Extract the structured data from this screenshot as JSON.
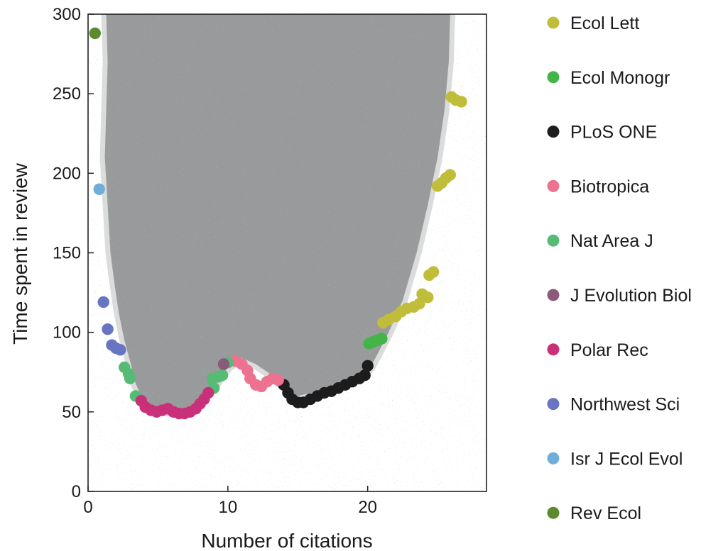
{
  "chart_data": {
    "type": "scatter",
    "title": "",
    "xlabel": "Number of citations",
    "ylabel": "Time spent in review",
    "xlim": [
      0,
      28.5
    ],
    "ylim": [
      0,
      300
    ],
    "x_ticks": [
      0,
      10,
      20
    ],
    "y_ticks": [
      0,
      50,
      100,
      150,
      200,
      250,
      300
    ],
    "grid": false,
    "legend_position": "right",
    "background_cloud": {
      "color": "#999a9c",
      "boundary": [
        [
          1.3,
          300
        ],
        [
          1.4,
          270
        ],
        [
          1.3,
          240
        ],
        [
          1.2,
          210
        ],
        [
          1.4,
          180
        ],
        [
          1.6,
          150
        ],
        [
          1.9,
          130
        ],
        [
          2.2,
          112
        ],
        [
          2.6,
          95
        ],
        [
          3.0,
          82
        ],
        [
          3.4,
          68
        ],
        [
          3.9,
          58
        ],
        [
          4.8,
          52
        ],
        [
          6.0,
          50
        ],
        [
          7.0,
          52
        ],
        [
          8.0,
          58
        ],
        [
          9.0,
          66
        ],
        [
          10.0,
          78
        ],
        [
          11.0,
          84
        ],
        [
          12.0,
          80
        ],
        [
          13.0,
          74
        ],
        [
          14.0,
          66
        ],
        [
          15.0,
          60
        ],
        [
          17.0,
          64
        ],
        [
          19.0,
          70
        ],
        [
          20.2,
          78
        ],
        [
          20.8,
          88
        ],
        [
          21.5,
          100
        ],
        [
          22.5,
          120
        ],
        [
          23.5,
          150
        ],
        [
          24.3,
          180
        ],
        [
          25.0,
          210
        ],
        [
          25.5,
          240
        ],
        [
          25.8,
          270
        ],
        [
          25.9,
          300
        ]
      ]
    },
    "series": [
      {
        "name": "Ecol Lett",
        "color": "#c0bd3a",
        "points": [
          [
            21.1,
            106
          ],
          [
            21.5,
            108
          ],
          [
            22.0,
            110
          ],
          [
            22.4,
            113
          ],
          [
            22.8,
            115
          ],
          [
            23.3,
            116
          ],
          [
            23.7,
            118
          ],
          [
            23.9,
            124
          ],
          [
            24.3,
            122
          ],
          [
            24.4,
            136
          ],
          [
            24.7,
            138
          ],
          [
            25.0,
            192
          ],
          [
            25.3,
            194
          ],
          [
            25.6,
            197
          ],
          [
            25.9,
            199
          ],
          [
            26.0,
            248
          ],
          [
            26.3,
            246
          ],
          [
            26.7,
            245
          ]
        ]
      },
      {
        "name": "Ecol Monogr",
        "color": "#43b546",
        "points": [
          [
            20.1,
            93
          ],
          [
            20.4,
            94
          ],
          [
            20.7,
            95
          ],
          [
            21.0,
            96
          ]
        ]
      },
      {
        "name": "PLoS ONE",
        "color": "#1c1c1c",
        "points": [
          [
            14.0,
            67
          ],
          [
            14.3,
            62
          ],
          [
            14.6,
            58
          ],
          [
            15.0,
            56
          ],
          [
            15.4,
            56
          ],
          [
            15.9,
            58
          ],
          [
            16.4,
            60
          ],
          [
            16.9,
            62
          ],
          [
            17.4,
            63
          ],
          [
            17.9,
            65
          ],
          [
            18.4,
            67
          ],
          [
            18.9,
            69
          ],
          [
            19.4,
            71
          ],
          [
            19.8,
            73
          ],
          [
            20.0,
            79
          ]
        ]
      },
      {
        "name": "Biotropica",
        "color": "#ec7290",
        "points": [
          [
            10.5,
            82
          ],
          [
            11.0,
            80
          ],
          [
            11.4,
            76
          ],
          [
            11.6,
            71
          ],
          [
            12.0,
            67
          ],
          [
            12.4,
            66
          ],
          [
            12.8,
            69
          ],
          [
            13.2,
            71
          ],
          [
            13.6,
            70
          ]
        ]
      },
      {
        "name": "Nat Area J",
        "color": "#56bb74",
        "points": [
          [
            2.6,
            78
          ],
          [
            2.9,
            74
          ],
          [
            3.0,
            71
          ],
          [
            3.4,
            60
          ],
          [
            8.9,
            71
          ],
          [
            9.0,
            65
          ],
          [
            9.3,
            72
          ],
          [
            9.6,
            73
          ],
          [
            10.0,
            81
          ]
        ]
      },
      {
        "name": "J Evolution Biol",
        "color": "#8a5a7b",
        "points": [
          [
            9.7,
            80
          ]
        ]
      },
      {
        "name": "Polar Rec",
        "color": "#c8317a",
        "points": [
          [
            3.8,
            57
          ],
          [
            4.1,
            53
          ],
          [
            4.5,
            51
          ],
          [
            4.9,
            50
          ],
          [
            5.3,
            51
          ],
          [
            5.7,
            52
          ],
          [
            6.1,
            50
          ],
          [
            6.5,
            49
          ],
          [
            6.9,
            49
          ],
          [
            7.3,
            50
          ],
          [
            7.7,
            52
          ],
          [
            8.0,
            55
          ],
          [
            8.3,
            58
          ],
          [
            8.6,
            62
          ]
        ]
      },
      {
        "name": "Northwest Sci",
        "color": "#6875c2",
        "points": [
          [
            1.1,
            119
          ],
          [
            1.4,
            102
          ],
          [
            1.7,
            92
          ],
          [
            2.0,
            90
          ],
          [
            2.3,
            89
          ]
        ]
      },
      {
        "name": "Isr J Ecol Evol",
        "color": "#70aed9",
        "points": [
          [
            0.8,
            190
          ]
        ]
      },
      {
        "name": "Rev Ecol",
        "color": "#5b8a2f",
        "points": [
          [
            0.5,
            288
          ]
        ]
      }
    ]
  }
}
